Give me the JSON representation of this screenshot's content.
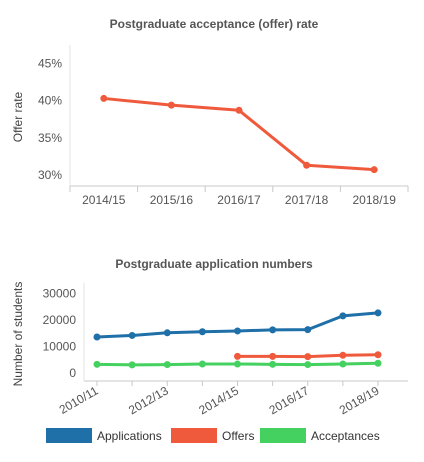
{
  "chart_data": [
    {
      "type": "line",
      "title": "Postgraduate acceptance (offer) rate",
      "ylabel": "Offer rate",
      "categories": [
        "2014/15",
        "2015/16",
        "2016/17",
        "2017/18",
        "2018/19"
      ],
      "y_ticks": [
        "30%",
        "35%",
        "40%",
        "45%"
      ],
      "ylim": [
        28.5,
        47.5
      ],
      "grid": false,
      "series": [
        {
          "values": [
            40.3,
            39.4,
            38.7,
            31.3,
            30.7
          ],
          "color": "#f05a3c"
        }
      ]
    },
    {
      "type": "line",
      "title": "Postgraduate application numbers",
      "ylabel": "Number of students",
      "x_tick_labels": [
        "2010/11",
        "2012/13",
        "2014/15",
        "2016/17",
        "2018/19"
      ],
      "x": [
        "2010/11",
        "2011/12",
        "2012/13",
        "2013/14",
        "2014/15",
        "2015/16",
        "2016/17",
        "2017/18",
        "2018/19"
      ],
      "y_ticks": [
        "0",
        "10000",
        "20000",
        "30000"
      ],
      "ylim": [
        -3000,
        34000
      ],
      "grid": false,
      "legend": "bottom",
      "series": [
        {
          "name": "Applications",
          "color": "#1f6fa8",
          "values": [
            13600,
            14200,
            15200,
            15600,
            15900,
            16300,
            16400,
            21600,
            22700
          ]
        },
        {
          "name": "Offers",
          "color": "#f05a3c",
          "values": [
            null,
            null,
            null,
            null,
            6300,
            6300,
            6200,
            6700,
            6900
          ]
        },
        {
          "name": "Acceptances",
          "color": "#44d160",
          "values": [
            3300,
            3100,
            3200,
            3400,
            3400,
            3300,
            3200,
            3400,
            3700
          ]
        }
      ]
    }
  ]
}
